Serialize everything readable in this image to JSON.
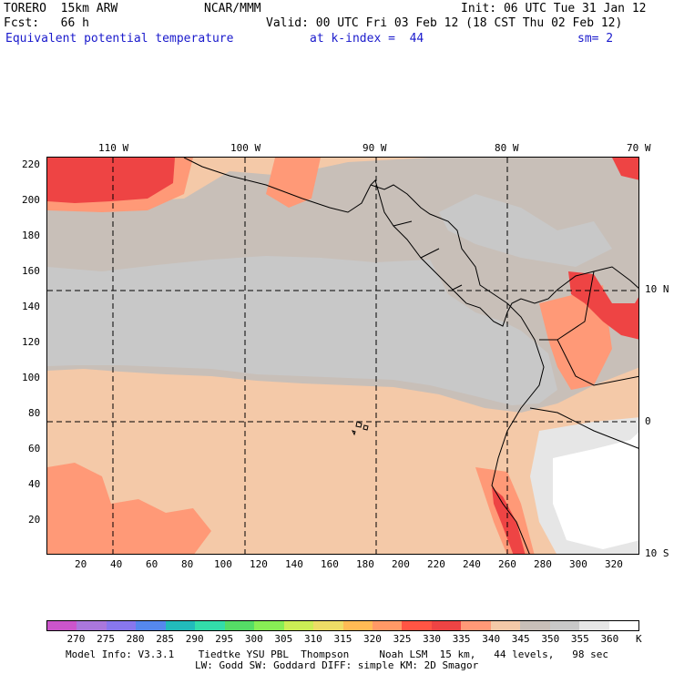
{
  "header": {
    "line1_left": "TORERO  15km ARW",
    "line1_mid": "NCAR/MMM",
    "line1_right": "Init: 06 UTC Tue 31 Jan 12",
    "line2_left": "Fcst:   66 h",
    "line2_right": "Valid: 00 UTC Fri 03 Feb 12 (18 CST Thu 02 Feb 12)",
    "field_name": "Equivalent potential temperature",
    "level": "at k-index =  44",
    "smoothing": "sm= 2"
  },
  "map": {
    "top_lon_labels": [
      "110 W",
      "100 W",
      "90 W",
      "80 W",
      "70 W"
    ],
    "right_lat_labels": [
      "10 N",
      "0",
      "10 S"
    ],
    "left_ticks": [
      "220",
      "200",
      "180",
      "160",
      "140",
      "120",
      "100",
      "80",
      "60",
      "40",
      "20"
    ],
    "bottom_ticks": [
      "20",
      "40",
      "60",
      "80",
      "100",
      "120",
      "140",
      "160",
      "180",
      "200",
      "220",
      "240",
      "260",
      "280",
      "300",
      "320"
    ]
  },
  "colorbar": {
    "labels": [
      "270",
      "275",
      "280",
      "285",
      "290",
      "295",
      "300",
      "305",
      "310",
      "315",
      "320",
      "325",
      "330",
      "335",
      "340",
      "345",
      "350",
      "355",
      "360"
    ],
    "unit": "K",
    "colors": [
      "#cc55cc",
      "#aa77dd",
      "#8877ee",
      "#5588ee",
      "#22bbbb",
      "#33ddaa",
      "#55dd66",
      "#88ee55",
      "#ccee55",
      "#eedd66",
      "#ffbb55",
      "#ff9966",
      "#ff5544",
      "#ee4444",
      "#ff9977",
      "#f4c9a8",
      "#c8bfb8",
      "#c8c8c8",
      "#e6e6e6",
      "#ffffff"
    ]
  },
  "footer": {
    "line1": "Model Info: V3.3.1    Tiedtke YSU PBL  Thompson     Noah LSM  15 km,   44 levels,   98 sec",
    "line2": "LW: Godd SW: Goddard DIFF: simple KM: 2D Smagor"
  }
}
